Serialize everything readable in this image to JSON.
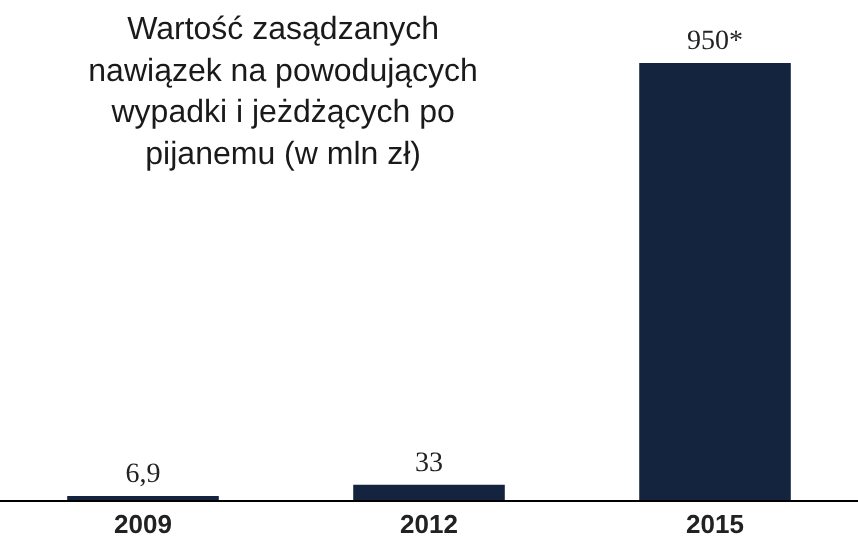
{
  "chart_data": {
    "type": "bar",
    "title": "Wartość zasądzanych nawiązek na powodujących wypadki i jeżdżących po pijanemu (w mln zł)",
    "categories": [
      "2009",
      "2012",
      "2015"
    ],
    "values": [
      6.9,
      33,
      950
    ],
    "value_labels": [
      "6,9",
      "33",
      "950*"
    ],
    "color": "#14243e"
  }
}
